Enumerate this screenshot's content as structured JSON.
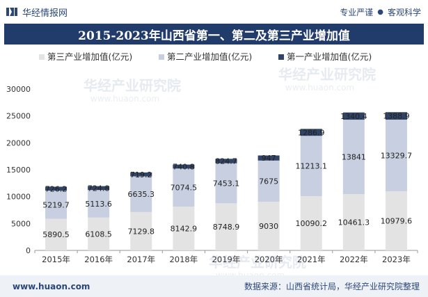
{
  "header": {
    "brand": "华经情报网",
    "tagline_left": "专业严谨",
    "tagline_sep": "●",
    "tagline_right": "客观科学"
  },
  "footer": {
    "url": "www.huaon.com",
    "source": "数据来源：山西省统计局，华经产业研究院整理"
  },
  "watermark": {
    "text_cn": "华经产业研究院",
    "text_url": "www.huaon.com"
  },
  "colors": {
    "tertiary": "#e3e3e3",
    "secondary": "#c7cfe0",
    "primary": "#314466",
    "title_bg": "#213b6a"
  },
  "chart_data": {
    "type": "bar",
    "stacked": true,
    "title": "2015-2023年山西省第一、第二及第三产业增加值",
    "categories": [
      "2015年",
      "2016年",
      "2017年",
      "2018年",
      "2019年",
      "2020年",
      "2021年",
      "2022年",
      "2023年"
    ],
    "series": [
      {
        "name": "第三产业增加值(亿元)",
        "values": [
          5890.5,
          6108.5,
          7129.8,
          8142.9,
          8748.9,
          9030,
          10090.2,
          10461.3,
          10979.6
        ],
        "labels": [
          "5890.5",
          "6108.5",
          "7129.8",
          "8142.9",
          "8748.9",
          "9030",
          "10090.2",
          "10461.3",
          "10979.6"
        ]
      },
      {
        "name": "第二产业增加值(亿元)",
        "values": [
          5219.7,
          5113.6,
          6635.3,
          7074.5,
          7453.1,
          7675,
          11213.1,
          13841,
          13329.7
        ],
        "labels": [
          "5219.7",
          "5113.6",
          "6635.3",
          "7074.5",
          "7453.1",
          "7675",
          "11213.1",
          "13841",
          "13329.7"
        ]
      },
      {
        "name": "第一产业增加值(亿元)",
        "values": [
          726.2,
          724.8,
          719.2,
          740.8,
          824.7,
          947,
          1286.9,
          1340.4,
          1388.9
        ],
        "labels": [
          "726.2",
          "724.8",
          "719.2",
          "740.8",
          "824.7",
          "947",
          "1286.9",
          "1340.4",
          "1388.9"
        ]
      }
    ],
    "yticks": [
      "0",
      "5000",
      "10000",
      "15000",
      "20000",
      "25000",
      "30000"
    ],
    "ylim": [
      0,
      30000
    ],
    "xlabel": "",
    "ylabel": "",
    "legend_position": "top"
  }
}
